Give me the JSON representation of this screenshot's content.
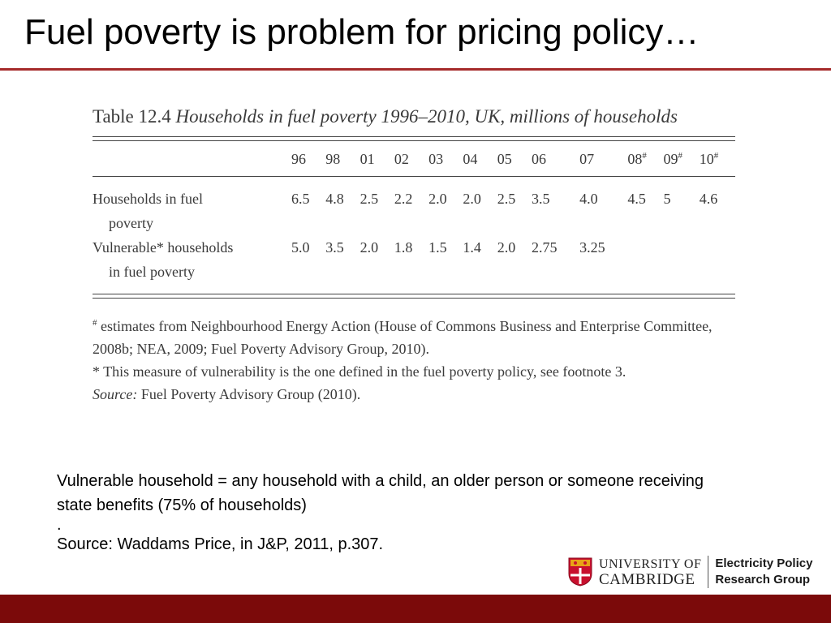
{
  "slide": {
    "title": "Fuel poverty is problem for pricing policy…"
  },
  "table": {
    "caption_number": "Table 12.4",
    "caption_title": "Households in fuel poverty 1996–2010, UK, millions of households",
    "years": [
      "96",
      "98",
      "01",
      "02",
      "03",
      "04",
      "05",
      "06",
      "07",
      "08",
      "09",
      "10"
    ],
    "year_marks": [
      "",
      "",
      "",
      "",
      "",
      "",
      "",
      "",
      "",
      "#",
      "#",
      "#"
    ],
    "rows": [
      {
        "label_line1": "Households in fuel",
        "label_line2": "poverty",
        "values": [
          "6.5",
          "4.8",
          "2.5",
          "2.2",
          "2.0",
          "2.0",
          "2.5",
          "3.5",
          "4.0",
          "4.5",
          "5",
          "4.6"
        ]
      },
      {
        "label_line1": "Vulnerable* households",
        "label_line2": "in fuel poverty",
        "values": [
          "5.0",
          "3.5",
          "2.0",
          "1.8",
          "1.5",
          "1.4",
          "2.0",
          "2.75",
          "3.25",
          "",
          "",
          ""
        ]
      }
    ],
    "notes": {
      "hash_mark": "#",
      "hash_note": " estimates from Neighbourhood Energy Action (House of Commons Business and Enterprise Committee, 2008b; NEA, 2009; Fuel Poverty Advisory Group, 2010).",
      "star_note": "* This measure of vulnerability is the one defined in the fuel poverty policy, see footnote 3.",
      "source_label": "Source:",
      "source_text": " Fuel Poverty Advisory Group (2010)."
    }
  },
  "body_text": {
    "definition": "Vulnerable household = any household with a child, an older person or someone receiving state benefits (75% of households)",
    "dot": ".",
    "source": "Source: Waddams Price, in J&P, 2011, p.307."
  },
  "logo": {
    "university_line1": "UNIVERSITY OF",
    "university_line2": "CAMBRIDGE",
    "group_line1": "Electricity Policy",
    "group_line2": "Research Group"
  },
  "colors": {
    "accent": "#a52a2a",
    "footer": "#7b0a0a"
  }
}
